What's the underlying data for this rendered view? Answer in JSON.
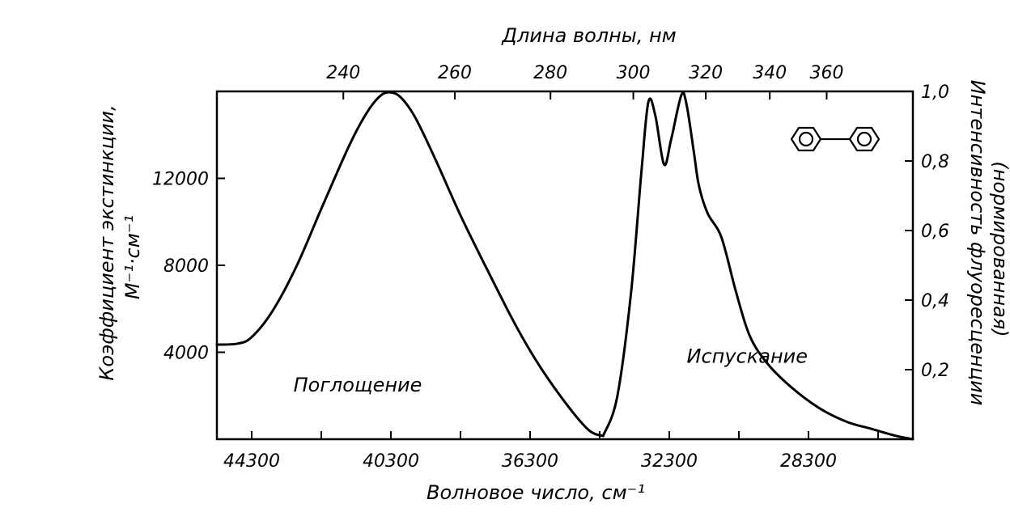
{
  "chart_data": {
    "type": "line",
    "title": "",
    "top_axis": {
      "label": "Длина волны, нм",
      "unit": "nm",
      "ticks": [
        {
          "value": 240,
          "label": "240"
        },
        {
          "value": 260,
          "label": "260"
        },
        {
          "value": 280,
          "label": "280"
        },
        {
          "value": 300,
          "label": "300"
        },
        {
          "value": 320,
          "label": "320"
        },
        {
          "value": 340,
          "label": "340"
        },
        {
          "value": 360,
          "label": "360"
        }
      ]
    },
    "bottom_axis": {
      "label": "Волновое число, см⁻¹",
      "unit": "cm-1",
      "range": [
        45300,
        25300
      ],
      "ticks": [
        {
          "value": 44300,
          "label": "44300"
        },
        {
          "value": 42300,
          "label": ""
        },
        {
          "value": 40300,
          "label": "40300"
        },
        {
          "value": 38300,
          "label": ""
        },
        {
          "value": 36300,
          "label": "36300"
        },
        {
          "value": 34300,
          "label": ""
        },
        {
          "value": 32300,
          "label": "32300"
        },
        {
          "value": 30300,
          "label": ""
        },
        {
          "value": 28300,
          "label": "28300"
        },
        {
          "value": 26300,
          "label": ""
        }
      ]
    },
    "left_axis": {
      "label_line1": "Коэффициент экстинкции,",
      "label_line2": "М⁻¹·см⁻¹",
      "range": [
        0,
        16000
      ],
      "ticks": [
        {
          "value": 4000,
          "label": "4000"
        },
        {
          "value": 8000,
          "label": "8000"
        },
        {
          "value": 12000,
          "label": "12000"
        }
      ]
    },
    "right_axis": {
      "label_line1": "Интенсивность флуоресценции",
      "label_line2": "(нормированная)",
      "range": [
        0,
        1.0
      ],
      "ticks": [
        {
          "value": 0.2,
          "label": "0,2"
        },
        {
          "value": 0.4,
          "label": "0,4"
        },
        {
          "value": 0.6,
          "label": "0,6"
        },
        {
          "value": 0.8,
          "label": "0,8"
        },
        {
          "value": 1.0,
          "label": "1,0"
        }
      ]
    },
    "series": [
      {
        "name": "Поглощение",
        "axis": "left",
        "x": [
          45300,
          44700,
          44300,
          43700,
          43000,
          42300,
          41500,
          41000,
          40600,
          40300,
          40000,
          39600,
          39000,
          38300,
          37500,
          36700,
          36000,
          35200,
          34600,
          34200
        ],
        "y": [
          4350,
          4400,
          4700,
          5900,
          8000,
          10600,
          13500,
          15000,
          15800,
          15950,
          15700,
          14800,
          12800,
          10300,
          7700,
          5200,
          3300,
          1500,
          400,
          150
        ]
      },
      {
        "name": "Испускание",
        "axis": "right",
        "x": [
          34200,
          33800,
          33400,
          33100,
          32900,
          32700,
          32450,
          32250,
          31950,
          31800,
          31600,
          31450,
          31200,
          30800,
          30400,
          30000,
          29500,
          28800,
          28000,
          27200,
          26500,
          25800,
          25300
        ],
        "y": [
          0.01,
          0.12,
          0.42,
          0.77,
          0.97,
          0.93,
          0.79,
          0.86,
          0.99,
          0.96,
          0.83,
          0.73,
          0.65,
          0.58,
          0.43,
          0.3,
          0.22,
          0.15,
          0.09,
          0.05,
          0.03,
          0.01,
          0.0
        ]
      }
    ],
    "annotations": [
      {
        "text": "Поглощение",
        "x": 43100,
        "y_left": 2200
      },
      {
        "text": "Испускание",
        "x": 31800,
        "y_right": 0.22
      }
    ],
    "grid": false,
    "legend": "none",
    "inset_icon": "biphenyl-structure"
  }
}
